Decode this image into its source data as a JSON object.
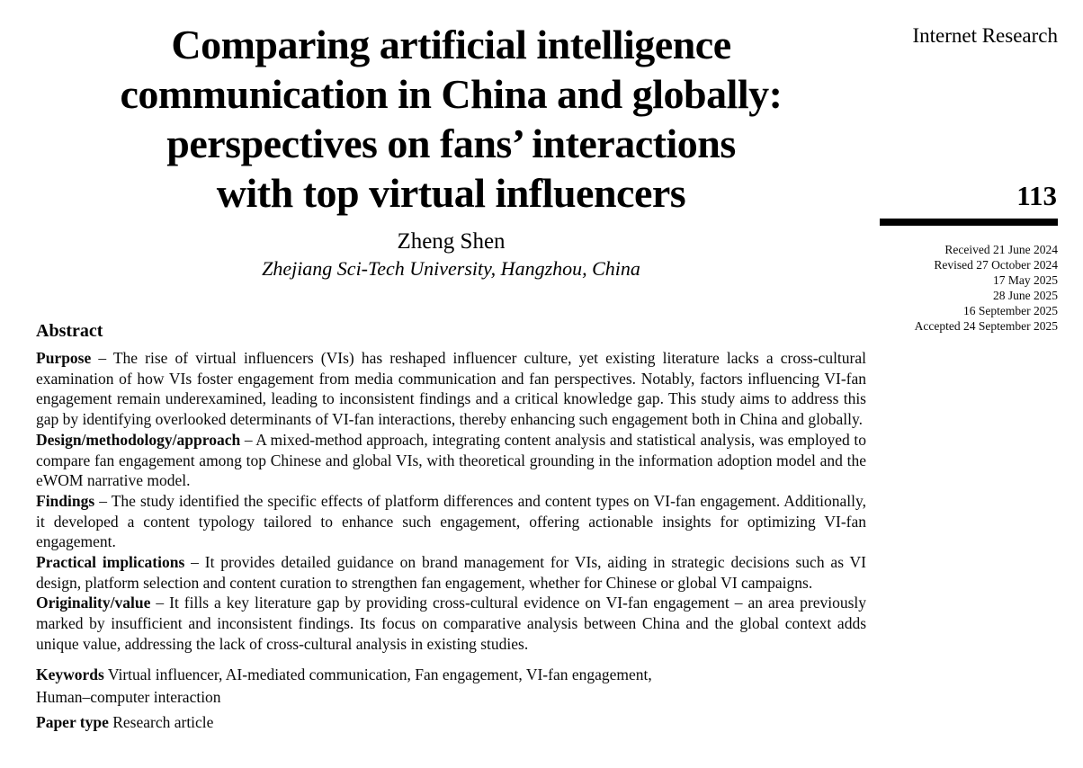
{
  "journal": {
    "name": "Internet Research",
    "page_number": "113",
    "history": [
      "Received 21 June 2024",
      "Revised 27 October 2024",
      "17 May 2025",
      "28 June 2025",
      "16 September 2025",
      "Accepted 24 September 2025"
    ]
  },
  "article": {
    "title_lines": [
      "Comparing artificial intelligence",
      "communication in China and globally:",
      "perspectives on fans’ interactions",
      "with top virtual influencers"
    ],
    "author": "Zheng Shen",
    "affiliation": "Zhejiang Sci-Tech University, Hangzhou, China",
    "abstract_heading": "Abstract",
    "sections": [
      {
        "label": "Purpose",
        "text": "– The rise of virtual influencers (VIs) has reshaped influencer culture, yet existing literature lacks a cross-cultural examination of how VIs foster engagement from media communication and fan perspectives. Notably, factors influencing VI-fan engagement remain underexamined, leading to inconsistent findings and a critical knowledge gap. This study aims to address this gap by identifying overlooked determinants of VI-fan interactions, thereby enhancing such engagement both in China and globally."
      },
      {
        "label": "Design/methodology/approach",
        "text": "– A mixed-method approach, integrating content analysis and statistical analysis, was employed to compare fan engagement among top Chinese and global VIs, with theoretical grounding in the information adoption model and the eWOM narrative model."
      },
      {
        "label": "Findings",
        "text": "– The study identified the specific effects of platform differences and content types on VI-fan engagement. Additionally, it developed a content typology tailored to enhance such engagement, offering actionable insights for optimizing VI-fan engagement."
      },
      {
        "label": "Practical implications",
        "text": "– It provides detailed guidance on brand management for VIs, aiding in strategic decisions such as VI design, platform selection and content curation to strengthen fan engagement, whether for Chinese or global VI campaigns."
      },
      {
        "label": "Originality/value",
        "text": "– It fills a key literature gap by providing cross-cultural evidence on VI-fan engagement – an area previously marked by insufficient and inconsistent findings. Its focus on comparative analysis between China and the global context adds unique value, addressing the lack of cross-cultural analysis in existing studies."
      }
    ],
    "keywords_label": "Keywords",
    "keywords_line1": "Virtual influencer, AI-mediated communication, Fan engagement, VI-fan engagement,",
    "keywords_line2": "Human–computer interaction",
    "paper_type_label": "Paper type",
    "paper_type_text": "Research article"
  },
  "colors": {
    "text": "#000000",
    "rule": "#000000",
    "background": "#ffffff"
  }
}
